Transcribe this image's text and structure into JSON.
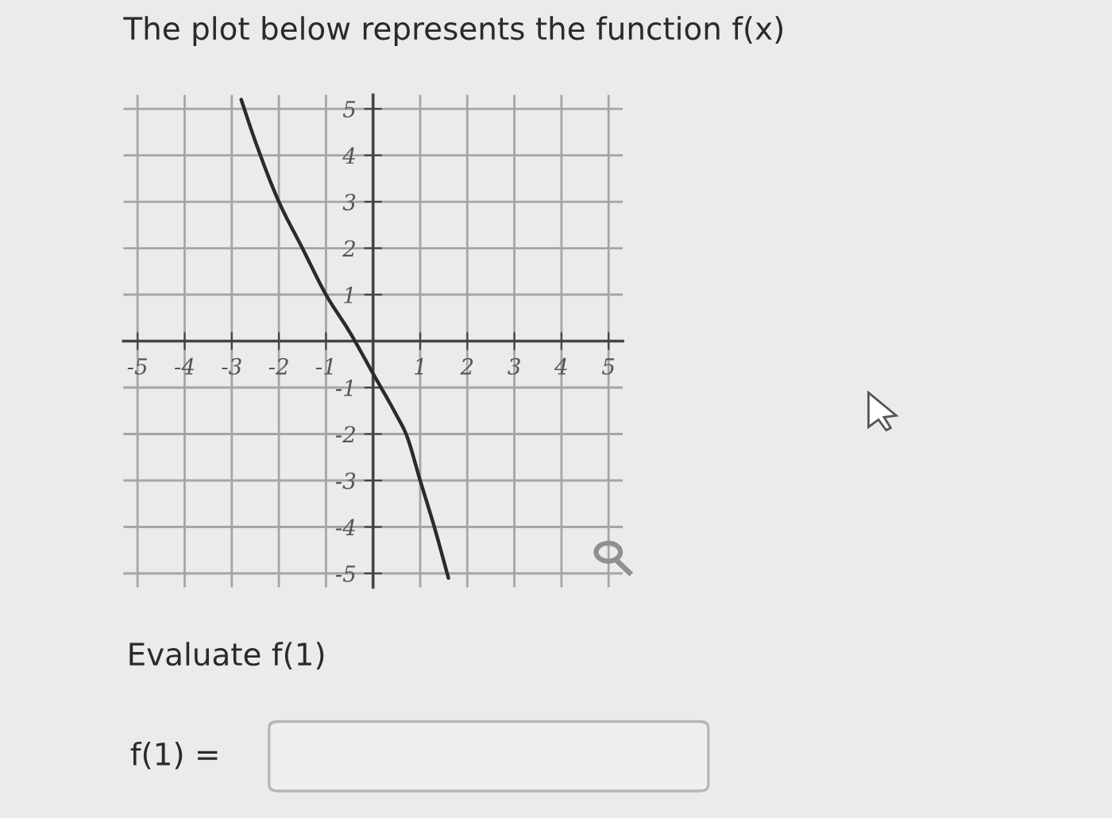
{
  "chart_data": {
    "type": "line",
    "title": "The plot below represents the function f(x)",
    "x": [
      -2.8,
      -2.5,
      -2.0,
      -1.5,
      -1.0,
      -0.5,
      0.0,
      0.5,
      0.7,
      1.0,
      1.3,
      1.6
    ],
    "series": [
      {
        "color": "#2b2b2b",
        "values": [
          5.2,
          4.3,
          3.0,
          2.0,
          1.0,
          0.2,
          -0.7,
          -1.6,
          -2.0,
          -3.0,
          -4.0,
          -5.1
        ]
      }
    ],
    "xlim": [
      -5.3,
      5.3
    ],
    "ylim": [
      -5.3,
      5.3
    ],
    "xticks": [
      -5,
      -4,
      -3,
      -2,
      -1,
      1,
      2,
      3,
      4,
      5
    ],
    "yticks": [
      -5,
      -4,
      -3,
      -2,
      -1,
      1,
      2,
      3,
      4,
      5
    ],
    "grid": true,
    "annotations": [
      "Evaluate f(1)",
      "f(1) ="
    ]
  }
}
